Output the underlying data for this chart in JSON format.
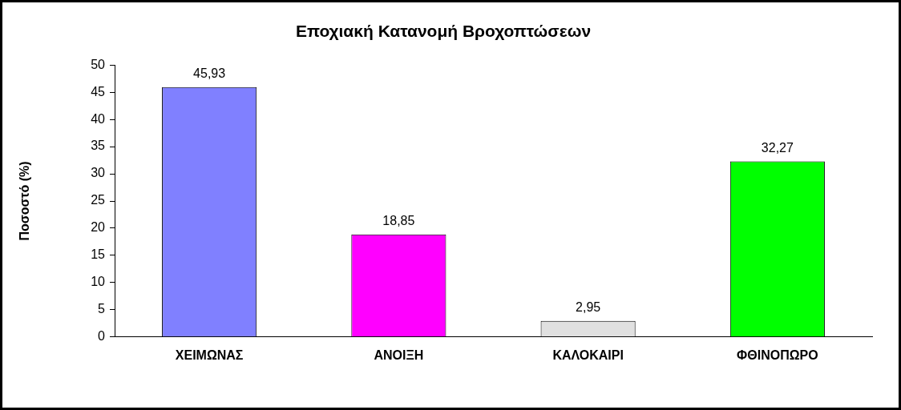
{
  "chart_data": {
    "type": "bar",
    "title": "Εποχιακή Κατανομή Βροχοπτώσεων",
    "ylabel": "Ποσοστό (%)",
    "categories": [
      "ΧΕΙΜΩΝΑΣ",
      "ΑΝΟΙΞΗ",
      "ΚΑΛΟΚΑΙΡΙ",
      "ΦΘΙΝΟΠΩΡΟ"
    ],
    "values": [
      45.93,
      18.85,
      2.95,
      32.27
    ],
    "value_labels": [
      "45,93",
      "18,85",
      "2,95",
      "32,27"
    ],
    "colors": [
      "#8080ff",
      "#ff00ff",
      "#e0e0e0",
      "#00ff00"
    ],
    "ylim": [
      0,
      50
    ],
    "yticks": [
      0,
      5,
      10,
      15,
      20,
      25,
      30,
      35,
      40,
      45,
      50
    ],
    "grid": false,
    "legend": false
  }
}
